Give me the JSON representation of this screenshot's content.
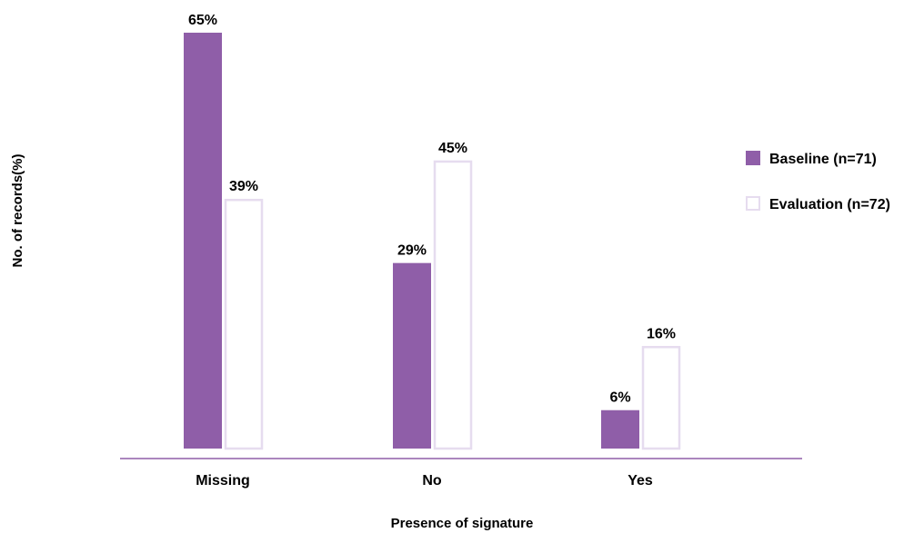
{
  "chart_data": {
    "type": "bar",
    "xlabel": "Presence of signature",
    "ylabel": "No. of records(%)",
    "categories": [
      "Missing",
      "No",
      "Yes"
    ],
    "series": [
      {
        "name": "Baseline (n=71)",
        "values": [
          65,
          29,
          6
        ],
        "labels": [
          "65%",
          "29%",
          "6%"
        ],
        "color": "#8f5ea8",
        "style": "filled"
      },
      {
        "name": "Evaluation (n=72)",
        "values": [
          39,
          45,
          16
        ],
        "labels": [
          "39%",
          "45%",
          "16%"
        ],
        "color": "#e6dcef",
        "style": "outline"
      }
    ],
    "ylim": [
      0,
      65
    ],
    "grid": false,
    "legend": "right"
  }
}
